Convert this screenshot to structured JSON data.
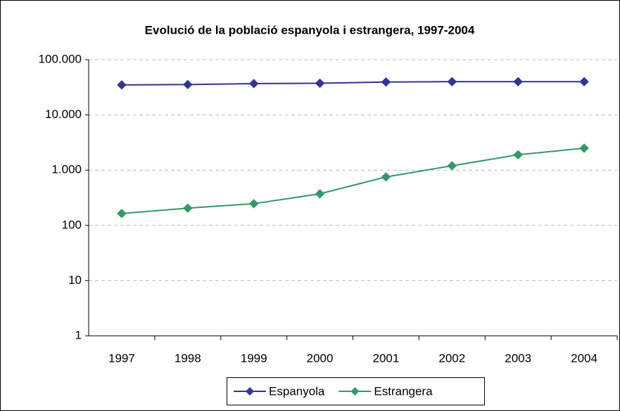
{
  "chart_data": {
    "type": "line",
    "title": "Evolució de la població espanyola i estrangera, 1997-2004",
    "categories": [
      "1997",
      "1998",
      "1999",
      "2000",
      "2001",
      "2002",
      "2003",
      "2004"
    ],
    "series": [
      {
        "name": "Espanyola",
        "color": "#333399",
        "values": [
          35000,
          35500,
          37000,
          37500,
          39500,
          40000,
          40000,
          40000
        ]
      },
      {
        "name": "Estrangera",
        "color": "#339966",
        "values": [
          164,
          205,
          247,
          373,
          754,
          1200,
          1900,
          2500
        ]
      }
    ],
    "yscale": "log",
    "ylim": [
      1,
      100000
    ],
    "yticks": [
      1,
      10,
      100,
      {
        "value": 1000,
        "label": "1.000"
      },
      {
        "value": 10000,
        "label": "10.000"
      },
      {
        "value": 100000,
        "label": "100.000"
      }
    ],
    "grid": true,
    "legend": "bottom"
  }
}
